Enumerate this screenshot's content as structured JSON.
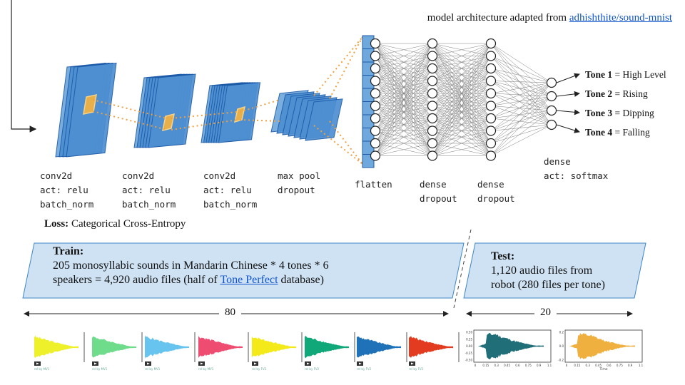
{
  "attribution": {
    "prefix": "model architecture adapted from ",
    "link_text": "adhishthite/sound-mnist"
  },
  "layers": [
    {
      "line1": "conv2d",
      "line2": "act: relu",
      "line3": "batch_norm"
    },
    {
      "line1": "conv2d",
      "line2": "act: relu",
      "line3": "batch_norm"
    },
    {
      "line1": "conv2d",
      "line2": "act: relu",
      "line3": "batch_norm"
    },
    {
      "line1": "max pool",
      "line2": "dropout"
    },
    {
      "line1": "flatten"
    },
    {
      "line1": "dense",
      "line2": "dropout"
    },
    {
      "line1": "dense",
      "line2": "dropout"
    },
    {
      "line1": "dense",
      "line2": "act: softmax"
    }
  ],
  "outputs": [
    {
      "tone": "Tone 1",
      "sep": " = ",
      "desc": "High Level"
    },
    {
      "tone": "Tone 2",
      "sep": " = ",
      "desc": "Rising"
    },
    {
      "tone": "Tone 3",
      "sep": " = ",
      "desc": "Dipping"
    },
    {
      "tone": "Tone 4",
      "sep": " = ",
      "desc": "Falling"
    }
  ],
  "loss": {
    "label": "Loss:",
    "value": " Categorical Cross-Entropy"
  },
  "train": {
    "title": "Train:",
    "line1": "205 monosyllabic sounds in Mandarin Chinese * 4 tones * 6",
    "line2_pre": "speakers = 4,920 audio files (half of ",
    "link_text": "Tone Perfect",
    "line2_post": " database)"
  },
  "test": {
    "title": "Test:",
    "line1": "1,120 audio files from",
    "line2": "robot (280 files per tone)"
  },
  "split": {
    "train_pct": "80",
    "test_pct": "20"
  },
  "waveforms": [
    {
      "color": "#eef02a",
      "caption": "rel by MV1"
    },
    {
      "color": "#6fdc8c",
      "caption": "rel by MV1"
    },
    {
      "color": "#67c4ee",
      "caption": "rel by MV1"
    },
    {
      "color": "#ef4c72",
      "caption": "rel by MV1"
    },
    {
      "color": "#f4ea1a",
      "caption": "rel by FV2"
    },
    {
      "color": "#10a878",
      "caption": "rel by FV2"
    },
    {
      "color": "#1f72b8",
      "caption": "rel by FV2"
    },
    {
      "color": "#e23b1f",
      "caption": "rel by FV2"
    }
  ],
  "test_plots": [
    {
      "color": "#1f6e78",
      "yticks": [
        "0.50",
        "0.25",
        "0.00",
        "-0.25",
        "-0.50"
      ],
      "xticks": [
        "0",
        "0.15",
        "0.3",
        "0.45",
        "0.6",
        "0.75",
        "0.9",
        "1.1"
      ]
    },
    {
      "color": "#f0b040",
      "yticks": [
        "0.2",
        "0.0",
        "-0.2"
      ],
      "xticks": [
        "0",
        "0.15",
        "0.3",
        "0.45",
        "0.6",
        "0.75",
        "0.9",
        "1.1"
      ],
      "xlabel": "Time"
    }
  ]
}
